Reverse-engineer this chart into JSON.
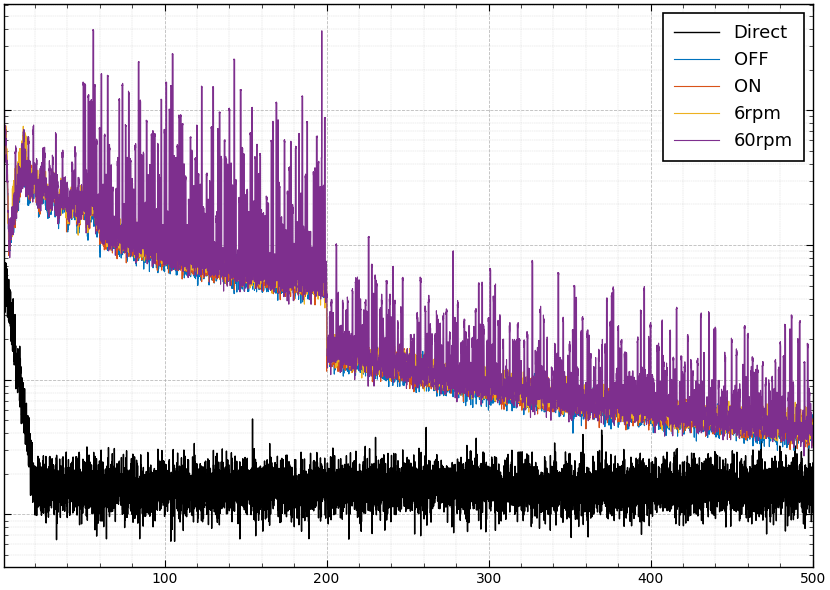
{
  "legend_labels": [
    "OFF",
    "ON",
    "6rpm",
    "60rpm",
    "Direct"
  ],
  "colors": [
    "#0072BD",
    "#D95319",
    "#EDB120",
    "#7E2F8E",
    "#000000"
  ],
  "linewidths": [
    0.8,
    0.8,
    0.8,
    0.8,
    1.0
  ],
  "xlim": [
    1,
    500
  ],
  "background_color": "#ffffff",
  "grid_color": "#aaaaaa",
  "figsize": [
    8.3,
    5.9
  ],
  "dpi": 100
}
